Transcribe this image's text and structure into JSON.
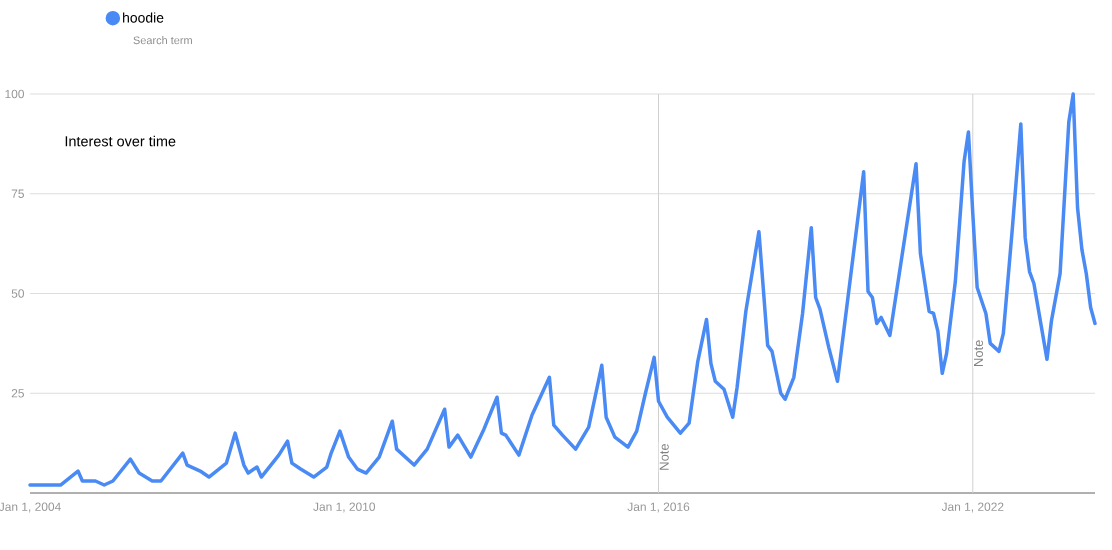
{
  "chart_data": {
    "type": "line",
    "title": "Interest over time",
    "annotations": [
      "Search term"
    ],
    "xlim": [
      "2004-01",
      "2024-05"
    ],
    "xticks": [
      {
        "value": "2004-01-01",
        "label": "Jan 1, 2004"
      },
      {
        "value": "2010-01-01",
        "label": "Jan 1, 2010"
      },
      {
        "value": "2016-01-01",
        "label": "Jan 1, 2016"
      },
      {
        "value": "2022-01-01",
        "label": "Jan 1, 2022"
      }
    ],
    "ylim": [
      0,
      100
    ],
    "yticks": [
      25,
      50,
      75,
      100
    ],
    "grid": "y",
    "legend": "top left",
    "marker": "none",
    "line_style": "solid",
    "ref_lines": [
      {
        "axis": "x",
        "value": "2016-01-01",
        "label": "Note",
        "color": "#d0d0d0"
      },
      {
        "axis": "x",
        "value": "2022-01-01",
        "label": "Note",
        "color": "#d0d0d0"
      }
    ],
    "x": [
      "2004-01",
      "2004-08",
      "2004-12",
      "2005-01",
      "2005-04",
      "2005-06",
      "2005-08",
      "2005-12",
      "2006-02",
      "2006-05",
      "2006-07",
      "2006-12",
      "2007-01",
      "2007-04",
      "2007-06",
      "2007-10",
      "2007-12",
      "2008-02",
      "2008-03",
      "2008-05",
      "2008-06",
      "2008-10",
      "2008-12",
      "2009-01",
      "2009-03",
      "2009-06",
      "2009-09",
      "2009-10",
      "2009-12",
      "2010-02",
      "2010-04",
      "2010-06",
      "2010-09",
      "2010-12",
      "2011-01",
      "2011-05",
      "2011-08",
      "2011-10",
      "2011-12",
      "2012-01",
      "2012-03",
      "2012-06",
      "2012-09",
      "2012-12",
      "2013-01",
      "2013-02",
      "2013-05",
      "2013-08",
      "2013-12",
      "2014-01",
      "2014-03",
      "2014-06",
      "2014-09",
      "2014-12",
      "2015-01",
      "2015-03",
      "2015-06",
      "2015-08",
      "2015-10",
      "2015-12",
      "2016-01",
      "2016-03",
      "2016-06",
      "2016-08",
      "2016-10",
      "2016-12",
      "2017-01",
      "2017-02",
      "2017-04",
      "2017-06",
      "2017-07",
      "2017-09",
      "2017-12",
      "2018-02",
      "2018-03",
      "2018-05",
      "2018-06",
      "2018-08",
      "2018-10",
      "2018-12",
      "2019-01",
      "2019-02",
      "2019-04",
      "2019-06",
      "2019-12",
      "2020-01",
      "2020-02",
      "2020-03",
      "2020-04",
      "2020-06",
      "2020-12",
      "2021-01",
      "2021-03",
      "2021-04",
      "2021-05",
      "2021-06",
      "2021-07",
      "2021-09",
      "2021-11",
      "2021-12",
      "2022-01",
      "2022-02",
      "2022-04",
      "2022-05",
      "2022-07",
      "2022-08",
      "2022-10",
      "2022-12",
      "2023-01",
      "2023-02",
      "2023-03",
      "2023-06",
      "2023-07",
      "2023-09",
      "2023-11",
      "2023-12",
      "2024-01",
      "2024-02",
      "2024-03",
      "2024-04",
      "2024-05"
    ],
    "series": [
      {
        "name": "hoodie",
        "color": "#4a8af4",
        "values": [
          2,
          2,
          5.5,
          3,
          3,
          2,
          3,
          8.5,
          5,
          3,
          3,
          10,
          7,
          5.5,
          4,
          7.5,
          15,
          7,
          5,
          6.5,
          4,
          9.5,
          13,
          7.5,
          6,
          4,
          6.5,
          10,
          15.5,
          9,
          6,
          5,
          9,
          18,
          11,
          7,
          11,
          16,
          21,
          11.5,
          14.5,
          9,
          16,
          24,
          15,
          14.5,
          9.5,
          19.5,
          29,
          17,
          14.5,
          11,
          16.5,
          32,
          19,
          14,
          11.5,
          15.5,
          25,
          34,
          23,
          19,
          15,
          17.5,
          33,
          43.5,
          32.5,
          28,
          26,
          19,
          26.5,
          45.5,
          65.5,
          37,
          35.5,
          25,
          23.5,
          29,
          45,
          66.5,
          49,
          46,
          36.5,
          28,
          80.5,
          50.5,
          49,
          42.5,
          44,
          39.5,
          82.5,
          60,
          45.5,
          45,
          40.5,
          30,
          35,
          53,
          83,
          90.5,
          70,
          51.5,
          45,
          37.5,
          35.5,
          40,
          65.5,
          92.5,
          64,
          55.5,
          52.5,
          33.5,
          43,
          55,
          93,
          100,
          71.5,
          61,
          55,
          46.5,
          42.5
        ]
      }
    ]
  }
}
